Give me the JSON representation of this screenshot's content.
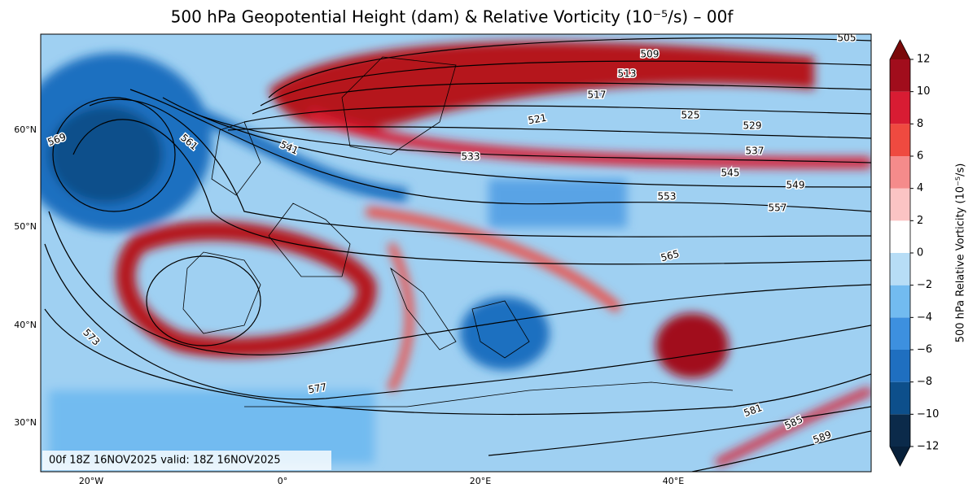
{
  "title": "500 hPa Geopotential Height (dam) & Relative Vorticity (10⁻⁵/s) – 00f",
  "colorbar": {
    "label": "500 hPa Relative Vorticity (10⁻⁵/s)",
    "ticks": [
      {
        "value": -12,
        "label": "−12"
      },
      {
        "value": -10,
        "label": "−10"
      },
      {
        "value": -8,
        "label": "−8"
      },
      {
        "value": -6,
        "label": "−6"
      },
      {
        "value": -4,
        "label": "−4"
      },
      {
        "value": -2,
        "label": "−2"
      },
      0,
      2,
      4,
      6,
      8,
      10,
      12
    ],
    "colors": [
      "#0b2a4a",
      "#0d4f8b",
      "#1f6fc0",
      "#3d90df",
      "#72bbf0",
      "#b7ddf6",
      "#ffffff",
      "#fbc4c4",
      "#f58b8b",
      "#ef4a40",
      "#d81c33",
      "#a10d1c"
    ],
    "under_color": "#07203a",
    "over_color": "#7a0a0a"
  },
  "lat_labels": [
    "60°N",
    "50°N",
    "40°N",
    "30°N"
  ],
  "lon_labels": [
    "20°W",
    "0°",
    "20°E",
    "40°E"
  ],
  "contour_labels": [
    "505",
    "509",
    "513",
    "517",
    "521",
    "525",
    "529",
    "533",
    "537",
    "541",
    "545",
    "549",
    "553",
    "557",
    "561",
    "565",
    "569",
    "573",
    "577",
    "581",
    "585",
    "589"
  ],
  "footer": "00f 18Z 16NOV2025 valid: 18Z 16NOV2025"
}
